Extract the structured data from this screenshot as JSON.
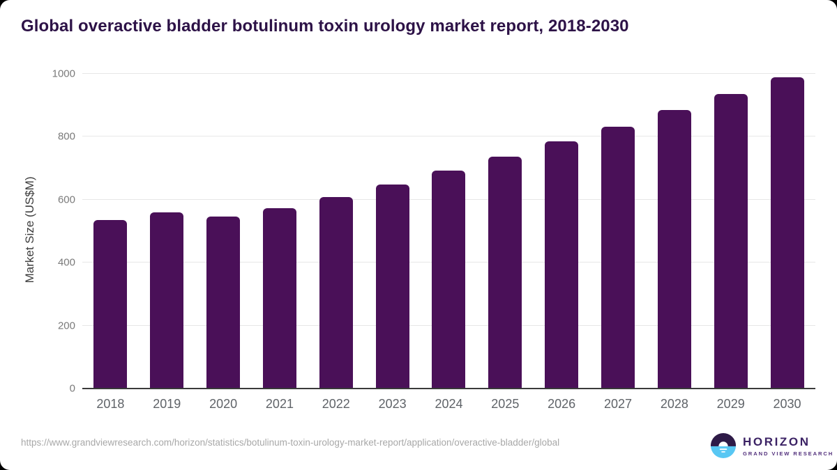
{
  "page": {
    "title": "Global overactive bladder botulinum toxin urology market report, 2018-2030",
    "source_url": "https://www.grandviewresearch.com/horizon/statistics/botulinum-toxin-urology-market-report/application/overactive-bladder/global"
  },
  "logo": {
    "name": "HORIZON",
    "subtitle": "GRAND VIEW RESEARCH"
  },
  "colors": {
    "bar": "#4a1058",
    "title": "#2d1247",
    "grid": "#e7e7e7",
    "axis_line": "#3a3a3a",
    "y_tick_label": "#7a7a7a",
    "x_label": "#5f6368",
    "url_text": "#a8a8a8",
    "logo_dark": "#2e1a47",
    "logo_blue": "#58c7f3"
  },
  "chart_data": {
    "type": "bar",
    "title": "Global overactive bladder botulinum toxin urology market report, 2018-2030",
    "categories": [
      "2018",
      "2019",
      "2020",
      "2021",
      "2022",
      "2023",
      "2024",
      "2025",
      "2026",
      "2027",
      "2028",
      "2029",
      "2030"
    ],
    "values": [
      535,
      560,
      546,
      572,
      609,
      649,
      693,
      737,
      785,
      832,
      884,
      935,
      990
    ],
    "xlabel": "",
    "ylabel": "Market Size (US$M)",
    "ylim": [
      0,
      1000
    ],
    "yticks": [
      0,
      200,
      400,
      600,
      800,
      1000
    ],
    "grid": true,
    "legend": false,
    "bar_color": "#4a1058"
  }
}
